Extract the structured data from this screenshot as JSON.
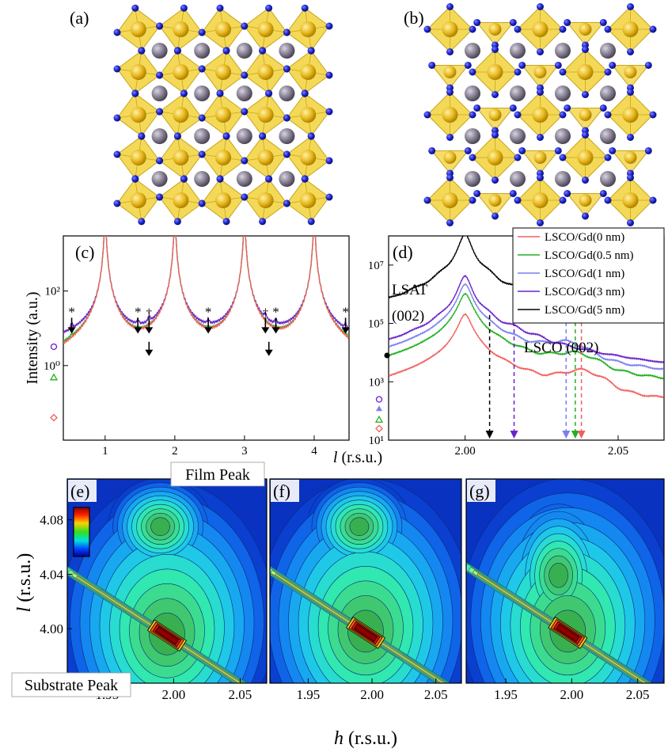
{
  "panels": {
    "a": {
      "label": "(a)"
    },
    "b": {
      "label": "(b)"
    },
    "c": {
      "label": "(c)"
    },
    "d": {
      "label": "(d)"
    },
    "e": {
      "label": "(e)"
    },
    "f": {
      "label": "(f)"
    },
    "g": {
      "label": "(g)"
    }
  },
  "colors": {
    "oxygen": "#1e22c8",
    "octahedron": "#f1d23a",
    "octahedron_edge": "#c9a51a",
    "cation": "#7c7688",
    "series_0nm": "#f0605e",
    "series_0_5nm": "#22b022",
    "series_1nm": "#7a7ff0",
    "series_3nm": "#6a22c8",
    "series_5nm": "#000000"
  },
  "annotations_c": {
    "star": "*",
    "dagger": "†"
  },
  "annotations_d": {
    "lsat_line1": "LSAT",
    "lsat_line2": "(002)",
    "lsco": "LSCO (002)"
  },
  "annotations_e": {
    "film_peak": "Film Peak",
    "substrate_peak": "Substrate Peak"
  },
  "axes": {
    "shared_x_label_top": "l (r.s.u.)",
    "c_ylabel": "Intensity (a.u.)",
    "bottom_x_label": "h (r.s.u.)",
    "bottom_y_label": "l (r.s.u.)"
  },
  "chart_data": [
    {
      "id": "c",
      "type": "line",
      "title": "",
      "xlabel": "l (r.s.u.)",
      "ylabel": "Intensity (a.u.)",
      "yscale": "log",
      "xlim": [
        0.4,
        4.5
      ],
      "ylim": [
        0.01,
        3000
      ],
      "x_ticks": [
        1,
        2,
        3,
        4
      ],
      "x_tick_labels": [
        "1",
        "2",
        "3",
        "4"
      ],
      "y_ticks": [
        1,
        100
      ],
      "y_tick_labels": [
        "10⁰",
        "10²"
      ],
      "series": [
        {
          "color": "#6a22c8",
          "baseline": 4,
          "marker": "circle",
          "peaks": [
            1,
            2,
            3,
            4
          ]
        },
        {
          "color": "#22b022",
          "baseline": 0.6,
          "marker": "triangle",
          "peaks": [
            1,
            2,
            3,
            4
          ]
        },
        {
          "color": "#f0605e",
          "baseline": 0.05,
          "marker": "diamond",
          "peaks": [
            1,
            2,
            3,
            4
          ]
        }
      ],
      "star_positions": [
        0.52,
        1.47,
        2.48,
        3.45,
        4.45
      ],
      "dagger_positions": [
        1.63,
        3.3
      ],
      "down_arrows": [
        0.52,
        1.47,
        1.63,
        2.48,
        3.3,
        3.45,
        4.45
      ],
      "lower_arrows": [
        1.63,
        3.35
      ]
    },
    {
      "id": "d",
      "type": "line",
      "title": "",
      "xlabel": "",
      "ylabel": "",
      "yscale": "log",
      "xlim": [
        1.975,
        2.065
      ],
      "ylim": [
        10,
        100000000
      ],
      "x_ticks": [
        2.0,
        2.05
      ],
      "x_tick_labels": [
        "2.00",
        "2.05"
      ],
      "y_ticks": [
        10,
        1000,
        100000,
        10000000
      ],
      "y_tick_labels": [
        "10¹",
        "10³",
        "10⁵",
        "10⁷"
      ],
      "legend_position": "top-right",
      "series": [
        {
          "name": "LSCO/Gd(0 nm)",
          "color": "#f0605e",
          "peak_lsat": 200000,
          "lsco_center": 2.038,
          "lsco_height": 1500,
          "base": 25,
          "marker": "diamond"
        },
        {
          "name": "LSCO/Gd(0.5 nm)",
          "color": "#22b022",
          "peak_lsat": 1000000,
          "lsco_center": 2.036,
          "lsco_height": 5000,
          "base": 50,
          "marker": "triangle"
        },
        {
          "name": "LSCO/Gd(1 nm)",
          "color": "#7a7ff0",
          "peak_lsat": 2000000,
          "lsco_center": 2.033,
          "lsco_height": 12000,
          "base": 120,
          "marker": "triangle-filled"
        },
        {
          "name": "LSCO/Gd(3 nm)",
          "color": "#6a22c8",
          "peak_lsat": 3500000,
          "lsco_center": 2.016,
          "lsco_height": 8000,
          "base": 250,
          "marker": "circle"
        },
        {
          "name": "LSCO/Gd(5 nm)",
          "color": "#000000",
          "peak_lsat": 90000000,
          "lsco_center": 2.008,
          "lsco_height": 40000,
          "base": 8000,
          "marker": "circle-filled"
        }
      ],
      "arrows": [
        {
          "x": 2.008,
          "color": "#000000"
        },
        {
          "x": 2.016,
          "color": "#6a22c8"
        },
        {
          "x": 2.033,
          "color": "#7a7ff0"
        },
        {
          "x": 2.036,
          "color": "#22b022"
        },
        {
          "x": 2.038,
          "color": "#f0605e"
        }
      ]
    },
    {
      "id": "e",
      "type": "heatmap",
      "xlabel": "h (r.s.u.)",
      "ylabel": "l (r.s.u.)",
      "xlim": [
        1.92,
        2.07
      ],
      "ylim": [
        3.96,
        4.11
      ],
      "x_ticks": [
        1.95,
        2.0,
        2.05
      ],
      "x_tick_labels": [
        "1.95",
        "2.00",
        "2.05"
      ],
      "y_ticks": [
        4.0,
        4.04,
        4.08
      ],
      "y_tick_labels": [
        "4.00",
        "4.04",
        "4.08"
      ],
      "film_peak": {
        "h": 1.99,
        "l": 4.075
      },
      "substrate_peak": {
        "h": 1.995,
        "l": 3.995
      }
    },
    {
      "id": "f",
      "type": "heatmap",
      "xlim": [
        1.92,
        2.07
      ],
      "ylim": [
        3.96,
        4.11
      ],
      "x_ticks": [
        1.95,
        2.0,
        2.05
      ],
      "x_tick_labels": [
        "1.95",
        "2.00",
        "2.05"
      ],
      "film_peak": {
        "h": 1.99,
        "l": 4.075
      },
      "substrate_peak": {
        "h": 1.995,
        "l": 3.997
      }
    },
    {
      "id": "g",
      "type": "heatmap",
      "xlim": [
        1.92,
        2.07
      ],
      "ylim": [
        3.96,
        4.11
      ],
      "x_ticks": [
        1.95,
        2.0,
        2.05
      ],
      "x_tick_labels": [
        "1.95",
        "2.00",
        "2.05"
      ],
      "film_peak": {
        "h": 1.99,
        "l": 4.045
      },
      "substrate_peak": {
        "h": 1.997,
        "l": 3.997
      }
    }
  ]
}
